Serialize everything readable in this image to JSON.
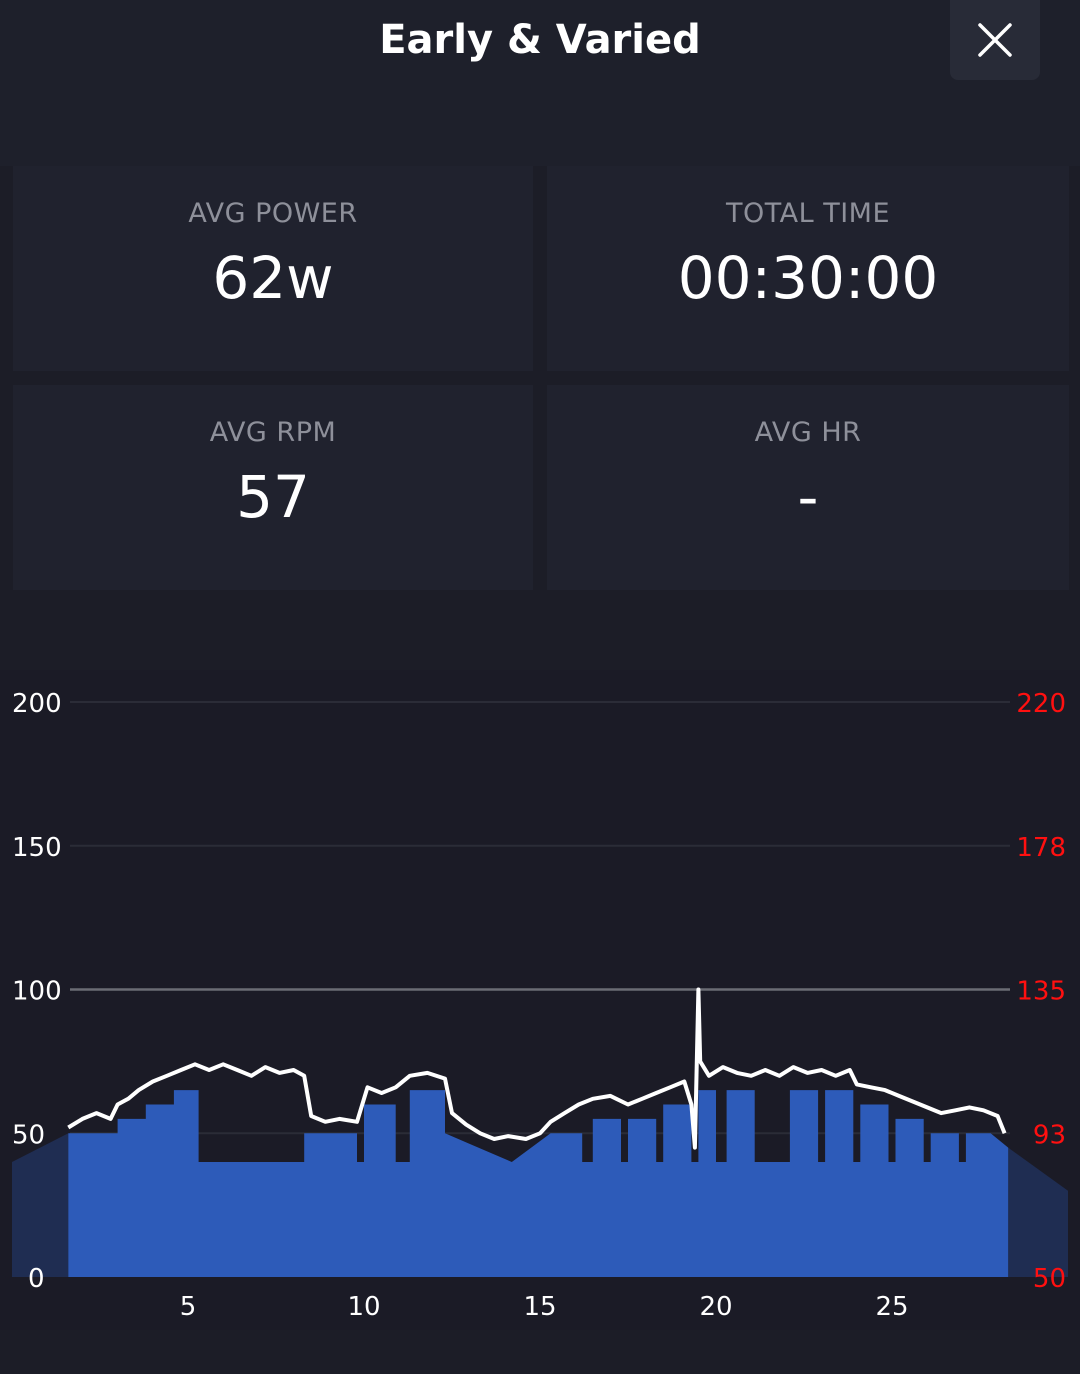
{
  "header": {
    "title": "Early & Varied",
    "close_icon": "close-icon"
  },
  "stats": {
    "avg_power": {
      "label": "AVG POWER",
      "value": "62w"
    },
    "total_time": {
      "label": "TOTAL TIME",
      "value": "00:30:00"
    },
    "avg_rpm": {
      "label": "AVG RPM",
      "value": "57"
    },
    "avg_hr": {
      "label": "AVG HR",
      "value": "-"
    }
  },
  "colors": {
    "background": "#1c1d27",
    "card": "#20222e",
    "target_fill": "#2d5bb9",
    "power_line": "#ffffff",
    "hr_axis": "#ff1010",
    "threshold_line": "#6b6c74"
  },
  "chart_data": {
    "type": "area",
    "x_ticks": [
      "5",
      "10",
      "15",
      "20",
      "25"
    ],
    "left_axis_ticks": [
      "0",
      "50",
      "100",
      "150",
      "200"
    ],
    "right_axis_ticks": [
      "50",
      "93",
      "135",
      "178",
      "220"
    ],
    "ylim": [
      0,
      200
    ],
    "xlim": [
      0,
      30
    ],
    "threshold": 100,
    "grid": true,
    "target_power": [
      {
        "x": 1.6,
        "y": 50
      },
      {
        "x": 3.0,
        "y": 50
      },
      {
        "x": 3.0,
        "y": 55
      },
      {
        "x": 3.8,
        "y": 55
      },
      {
        "x": 3.8,
        "y": 60
      },
      {
        "x": 4.6,
        "y": 60
      },
      {
        "x": 4.6,
        "y": 65
      },
      {
        "x": 5.3,
        "y": 65
      },
      {
        "x": 5.3,
        "y": 40
      },
      {
        "x": 8.3,
        "y": 40
      },
      {
        "x": 8.3,
        "y": 50
      },
      {
        "x": 9.8,
        "y": 50
      },
      {
        "x": 9.8,
        "y": 40
      },
      {
        "x": 10.0,
        "y": 40
      },
      {
        "x": 10.0,
        "y": 60
      },
      {
        "x": 10.9,
        "y": 60
      },
      {
        "x": 10.9,
        "y": 40
      },
      {
        "x": 11.3,
        "y": 40
      },
      {
        "x": 11.3,
        "y": 65
      },
      {
        "x": 12.3,
        "y": 65
      },
      {
        "x": 12.3,
        "y": 50
      },
      {
        "x": 14.2,
        "y": 40
      },
      {
        "x": 15.3,
        "y": 50
      },
      {
        "x": 16.2,
        "y": 50
      },
      {
        "x": 16.2,
        "y": 40
      },
      {
        "x": 16.5,
        "y": 40
      },
      {
        "x": 16.5,
        "y": 55
      },
      {
        "x": 17.3,
        "y": 55
      },
      {
        "x": 17.3,
        "y": 40
      },
      {
        "x": 17.5,
        "y": 40
      },
      {
        "x": 17.5,
        "y": 55
      },
      {
        "x": 18.3,
        "y": 55
      },
      {
        "x": 18.3,
        "y": 40
      },
      {
        "x": 18.5,
        "y": 40
      },
      {
        "x": 18.5,
        "y": 60
      },
      {
        "x": 19.3,
        "y": 60
      },
      {
        "x": 19.3,
        "y": 40
      },
      {
        "x": 19.5,
        "y": 40
      },
      {
        "x": 19.5,
        "y": 65
      },
      {
        "x": 20.0,
        "y": 65
      },
      {
        "x": 20.0,
        "y": 40
      },
      {
        "x": 20.3,
        "y": 40
      },
      {
        "x": 20.3,
        "y": 65
      },
      {
        "x": 21.1,
        "y": 65
      },
      {
        "x": 21.1,
        "y": 40
      },
      {
        "x": 22.1,
        "y": 40
      },
      {
        "x": 22.1,
        "y": 65
      },
      {
        "x": 22.9,
        "y": 65
      },
      {
        "x": 22.9,
        "y": 40
      },
      {
        "x": 23.1,
        "y": 40
      },
      {
        "x": 23.1,
        "y": 65
      },
      {
        "x": 23.9,
        "y": 65
      },
      {
        "x": 23.9,
        "y": 40
      },
      {
        "x": 24.1,
        "y": 40
      },
      {
        "x": 24.1,
        "y": 60
      },
      {
        "x": 24.9,
        "y": 60
      },
      {
        "x": 24.9,
        "y": 40
      },
      {
        "x": 25.1,
        "y": 40
      },
      {
        "x": 25.1,
        "y": 55
      },
      {
        "x": 25.9,
        "y": 55
      },
      {
        "x": 25.9,
        "y": 40
      },
      {
        "x": 26.1,
        "y": 40
      },
      {
        "x": 26.1,
        "y": 50
      },
      {
        "x": 26.9,
        "y": 50
      },
      {
        "x": 26.9,
        "y": 40
      },
      {
        "x": 27.1,
        "y": 40
      },
      {
        "x": 27.1,
        "y": 50
      },
      {
        "x": 27.8,
        "y": 50
      },
      {
        "x": 28.3,
        "y": 45
      }
    ],
    "power": [
      {
        "x": 1.6,
        "y": 52
      },
      {
        "x": 2.0,
        "y": 55
      },
      {
        "x": 2.4,
        "y": 57
      },
      {
        "x": 2.8,
        "y": 55
      },
      {
        "x": 3.0,
        "y": 60
      },
      {
        "x": 3.3,
        "y": 62
      },
      {
        "x": 3.6,
        "y": 65
      },
      {
        "x": 4.0,
        "y": 68
      },
      {
        "x": 4.4,
        "y": 70
      },
      {
        "x": 4.8,
        "y": 72
      },
      {
        "x": 5.2,
        "y": 74
      },
      {
        "x": 5.6,
        "y": 72
      },
      {
        "x": 6.0,
        "y": 74
      },
      {
        "x": 6.4,
        "y": 72
      },
      {
        "x": 6.8,
        "y": 70
      },
      {
        "x": 7.2,
        "y": 73
      },
      {
        "x": 7.6,
        "y": 71
      },
      {
        "x": 8.0,
        "y": 72
      },
      {
        "x": 8.3,
        "y": 70
      },
      {
        "x": 8.5,
        "y": 56
      },
      {
        "x": 8.9,
        "y": 54
      },
      {
        "x": 9.3,
        "y": 55
      },
      {
        "x": 9.8,
        "y": 54
      },
      {
        "x": 10.1,
        "y": 66
      },
      {
        "x": 10.5,
        "y": 64
      },
      {
        "x": 10.9,
        "y": 66
      },
      {
        "x": 11.3,
        "y": 70
      },
      {
        "x": 11.8,
        "y": 71
      },
      {
        "x": 12.3,
        "y": 69
      },
      {
        "x": 12.5,
        "y": 57
      },
      {
        "x": 12.9,
        "y": 53
      },
      {
        "x": 13.3,
        "y": 50
      },
      {
        "x": 13.7,
        "y": 48
      },
      {
        "x": 14.1,
        "y": 49
      },
      {
        "x": 14.6,
        "y": 48
      },
      {
        "x": 15.0,
        "y": 50
      },
      {
        "x": 15.3,
        "y": 54
      },
      {
        "x": 15.7,
        "y": 57
      },
      {
        "x": 16.1,
        "y": 60
      },
      {
        "x": 16.5,
        "y": 62
      },
      {
        "x": 17.0,
        "y": 63
      },
      {
        "x": 17.5,
        "y": 60
      },
      {
        "x": 17.9,
        "y": 62
      },
      {
        "x": 18.3,
        "y": 64
      },
      {
        "x": 18.7,
        "y": 66
      },
      {
        "x": 19.1,
        "y": 68
      },
      {
        "x": 19.3,
        "y": 60
      },
      {
        "x": 19.4,
        "y": 45
      },
      {
        "x": 19.5,
        "y": 100
      },
      {
        "x": 19.55,
        "y": 75
      },
      {
        "x": 19.8,
        "y": 70
      },
      {
        "x": 20.2,
        "y": 73
      },
      {
        "x": 20.6,
        "y": 71
      },
      {
        "x": 21.0,
        "y": 70
      },
      {
        "x": 21.4,
        "y": 72
      },
      {
        "x": 21.8,
        "y": 70
      },
      {
        "x": 22.2,
        "y": 73
      },
      {
        "x": 22.6,
        "y": 71
      },
      {
        "x": 23.0,
        "y": 72
      },
      {
        "x": 23.4,
        "y": 70
      },
      {
        "x": 23.8,
        "y": 72
      },
      {
        "x": 24.0,
        "y": 67
      },
      {
        "x": 24.4,
        "y": 66
      },
      {
        "x": 24.8,
        "y": 65
      },
      {
        "x": 25.2,
        "y": 63
      },
      {
        "x": 25.6,
        "y": 61
      },
      {
        "x": 26.0,
        "y": 59
      },
      {
        "x": 26.4,
        "y": 57
      },
      {
        "x": 26.8,
        "y": 58
      },
      {
        "x": 27.2,
        "y": 59
      },
      {
        "x": 27.6,
        "y": 58
      },
      {
        "x": 28.0,
        "y": 56
      },
      {
        "x": 28.2,
        "y": 50
      }
    ]
  }
}
